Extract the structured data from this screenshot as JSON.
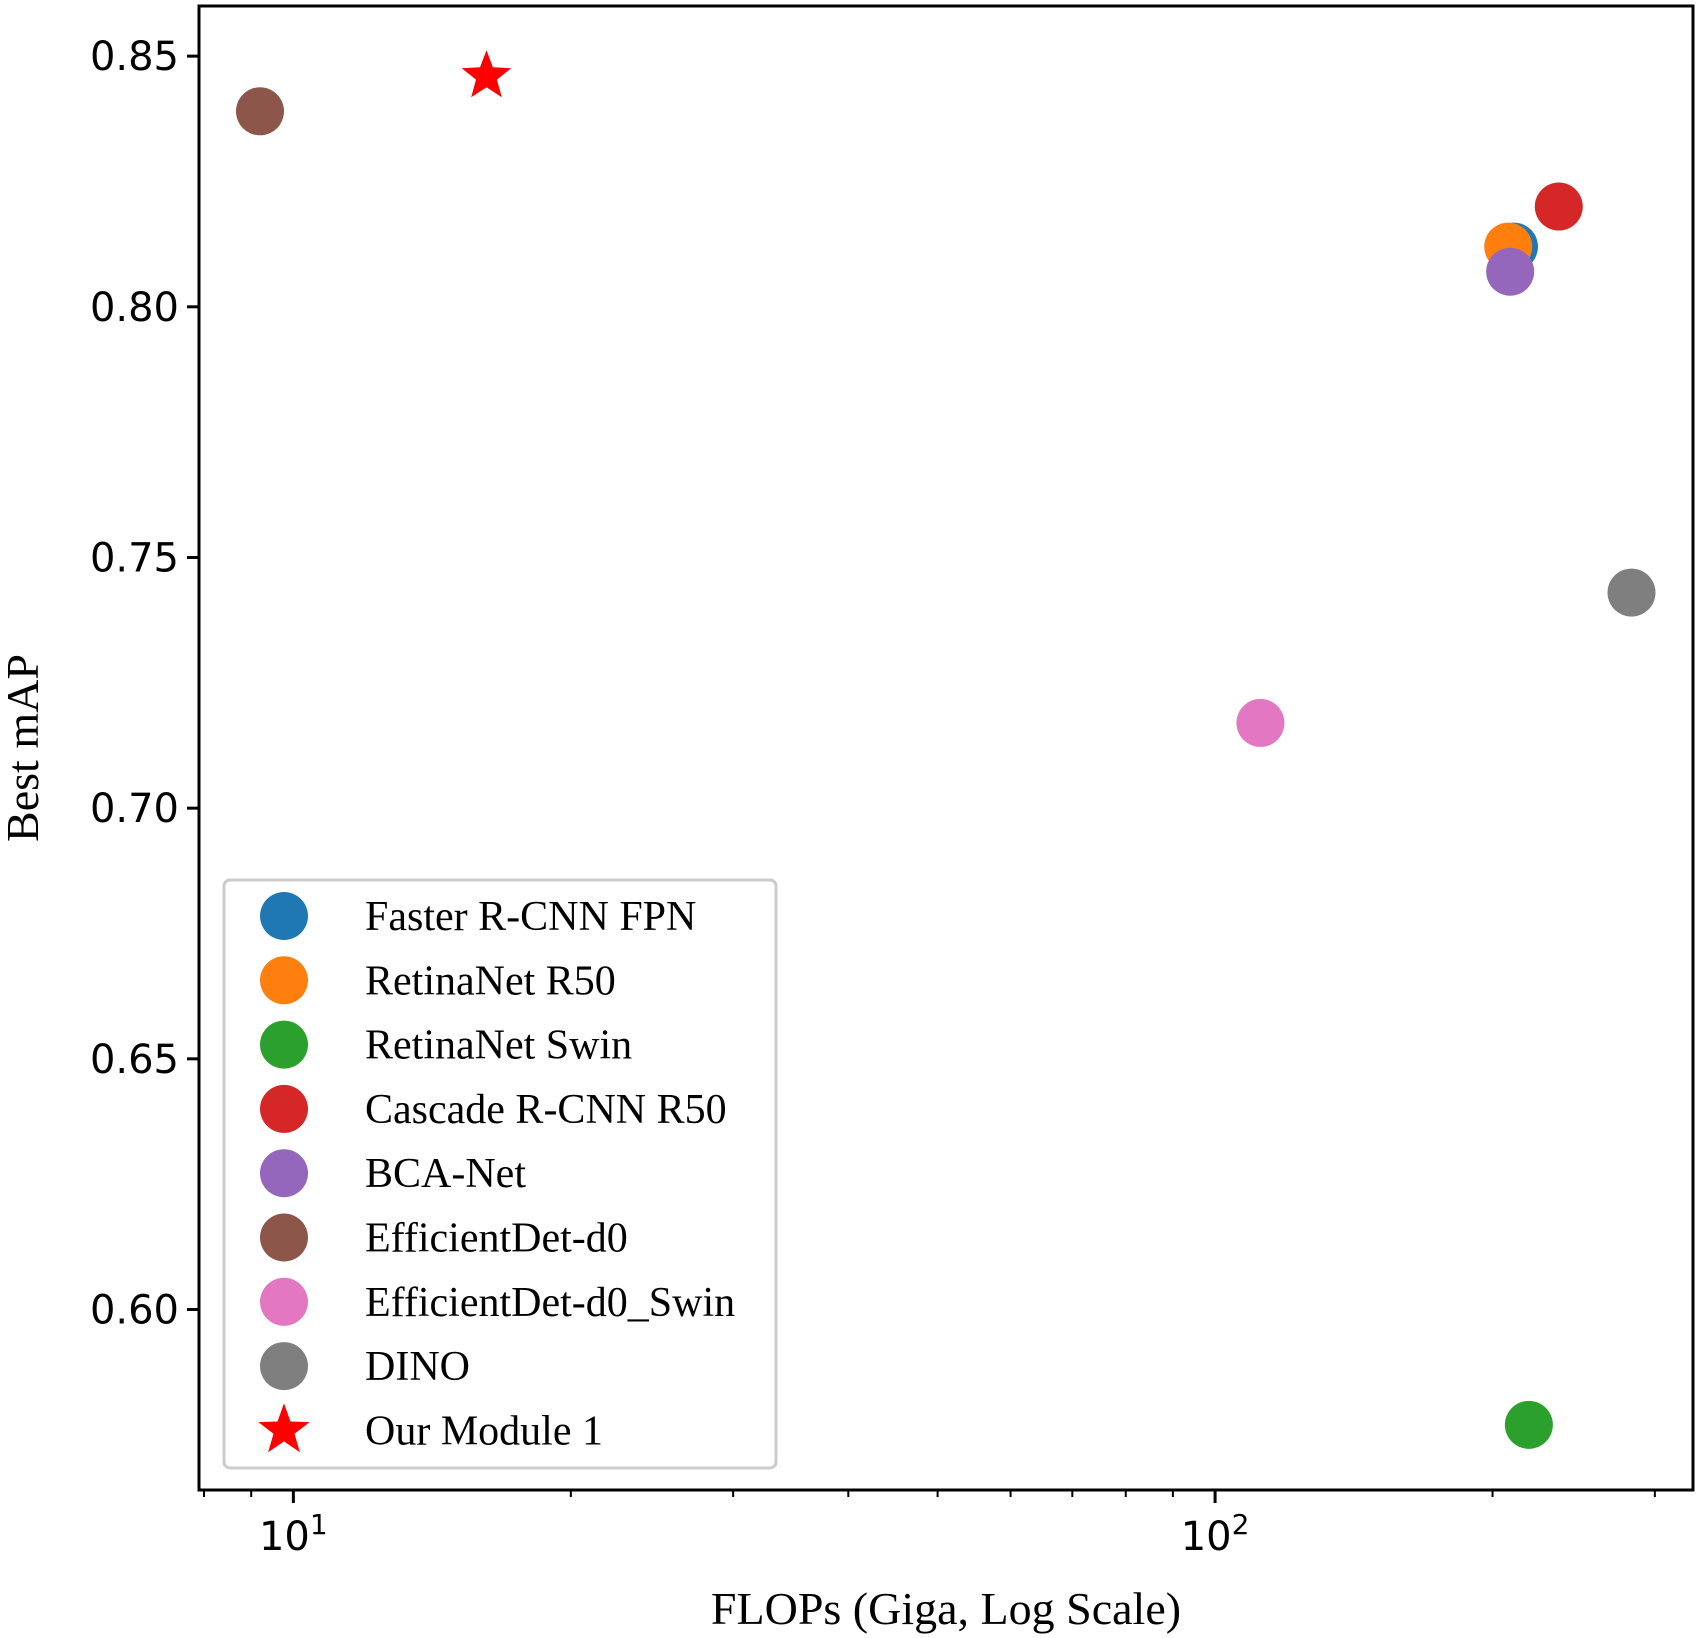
{
  "chart_data": {
    "type": "scatter",
    "title": "",
    "xlabel": "FLOPs (Giga, Log Scale)",
    "ylabel": "Best mAP",
    "x_scale": "log",
    "xlim": [
      7.9,
      330
    ],
    "ylim": [
      0.564,
      0.86
    ],
    "x_ticks": [
      {
        "value": 10,
        "label_base": "10",
        "label_exp": "1"
      },
      {
        "value": 100,
        "label_base": "10",
        "label_exp": "2"
      }
    ],
    "y_ticks": [
      {
        "value": 0.6,
        "label": "0.60"
      },
      {
        "value": 0.65,
        "label": "0.65"
      },
      {
        "value": 0.7,
        "label": "0.70"
      },
      {
        "value": 0.75,
        "label": "0.75"
      },
      {
        "value": 0.8,
        "label": "0.80"
      },
      {
        "value": 0.85,
        "label": "0.85"
      }
    ],
    "grid": false,
    "legend_position": "lower-left",
    "series": [
      {
        "name": "Faster R-CNN FPN",
        "color": "#1f77b4",
        "marker": "circle",
        "x": 211,
        "y": 0.812
      },
      {
        "name": "RetinaNet R50",
        "color": "#ff7f0e",
        "marker": "circle",
        "x": 208,
        "y": 0.812
      },
      {
        "name": "RetinaNet Swin",
        "color": "#2ca02c",
        "marker": "circle",
        "x": 219,
        "y": 0.577
      },
      {
        "name": "Cascade R-CNN R50",
        "color": "#d62728",
        "marker": "circle",
        "x": 236,
        "y": 0.82
      },
      {
        "name": "BCA-Net",
        "color": "#9467bd",
        "marker": "circle",
        "x": 209,
        "y": 0.807
      },
      {
        "name": "EfficientDet-d0",
        "color": "#8c564b",
        "marker": "circle",
        "x": 9.2,
        "y": 0.839
      },
      {
        "name": "EfficientDet-d0_Swin",
        "color": "#e377c2",
        "marker": "circle",
        "x": 112,
        "y": 0.717
      },
      {
        "name": "DINO",
        "color": "#7f7f7f",
        "marker": "circle",
        "x": 283,
        "y": 0.743
      },
      {
        "name": "Our Module 1",
        "color": "#ff0000",
        "marker": "star",
        "x": 16.2,
        "y": 0.846
      }
    ]
  }
}
